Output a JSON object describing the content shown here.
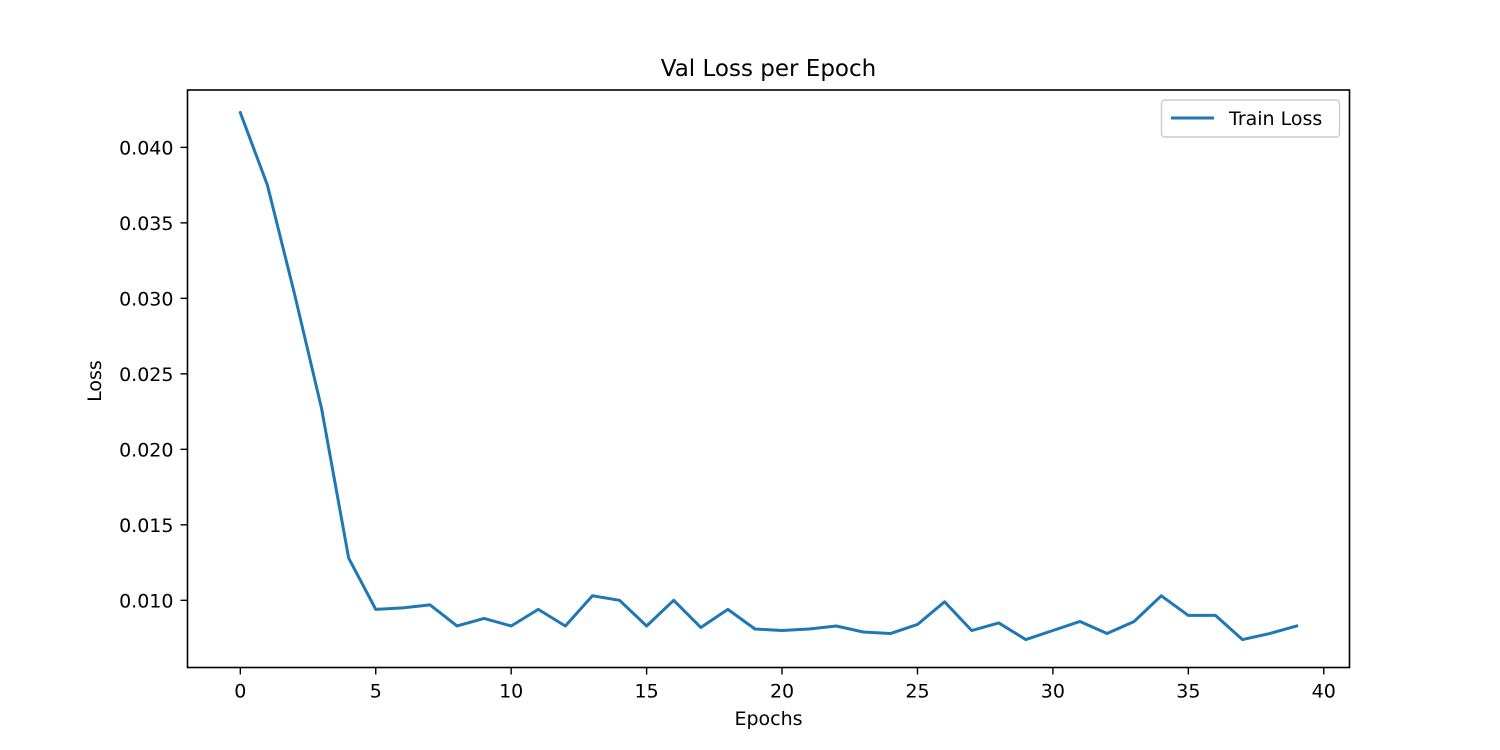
{
  "chart_data": {
    "type": "line",
    "title": "Val Loss per Epoch",
    "xlabel": "Epochs",
    "ylabel": "Loss",
    "xlim": [
      -1.95,
      40.95
    ],
    "ylim": [
      0.00555,
      0.0438
    ],
    "xticks": [
      0,
      5,
      10,
      15,
      20,
      25,
      30,
      35,
      40
    ],
    "xtick_labels": [
      "0",
      "5",
      "10",
      "15",
      "20",
      "25",
      "30",
      "35",
      "40"
    ],
    "yticks": [
      0.01,
      0.015,
      0.02,
      0.025,
      0.03,
      0.035,
      0.04
    ],
    "ytick_labels": [
      "0.010",
      "0.015",
      "0.020",
      "0.025",
      "0.030",
      "0.035",
      "0.040"
    ],
    "grid": false,
    "legend": {
      "placement": "top-right",
      "entries": [
        "Train Loss"
      ]
    },
    "series": [
      {
        "name": "Train Loss",
        "color": "#1f77b4",
        "x": [
          0,
          1,
          2,
          3,
          4,
          5,
          6,
          7,
          8,
          9,
          10,
          11,
          12,
          13,
          14,
          15,
          16,
          17,
          18,
          19,
          20,
          21,
          22,
          23,
          24,
          25,
          26,
          27,
          28,
          29,
          30,
          31,
          32,
          33,
          34,
          35,
          36,
          37,
          38,
          39
        ],
        "values": [
          0.0423,
          0.0375,
          0.0303,
          0.0227,
          0.0128,
          0.0094,
          0.0095,
          0.0097,
          0.0083,
          0.0088,
          0.0083,
          0.0094,
          0.0083,
          0.0103,
          0.01,
          0.0083,
          0.01,
          0.0082,
          0.0094,
          0.0081,
          0.008,
          0.0081,
          0.0083,
          0.0079,
          0.0078,
          0.0084,
          0.0099,
          0.008,
          0.0085,
          0.0074,
          0.008,
          0.0086,
          0.0078,
          0.0086,
          0.0103,
          0.009,
          0.009,
          0.0074,
          0.0078,
          0.0083
        ]
      }
    ]
  }
}
